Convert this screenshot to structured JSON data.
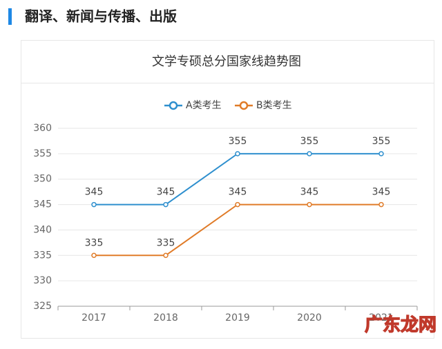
{
  "header": {
    "title": "翻译、新闻与传播、出版"
  },
  "watermark": "广东龙网",
  "chart_data": {
    "type": "line",
    "title": "文学专硕总分国家线趋势图",
    "categories": [
      "2017",
      "2018",
      "2019",
      "2020",
      "2021"
    ],
    "series": [
      {
        "name": "A类考生",
        "color": "#2e8fce",
        "values": [
          345,
          345,
          355,
          355,
          355
        ]
      },
      {
        "name": "B类考生",
        "color": "#e07b28",
        "values": [
          335,
          335,
          345,
          345,
          345
        ]
      }
    ],
    "ylim": [
      325,
      360
    ],
    "yticks": [
      325,
      330,
      335,
      340,
      345,
      350,
      355,
      360
    ],
    "grid": true,
    "legend": "top"
  }
}
